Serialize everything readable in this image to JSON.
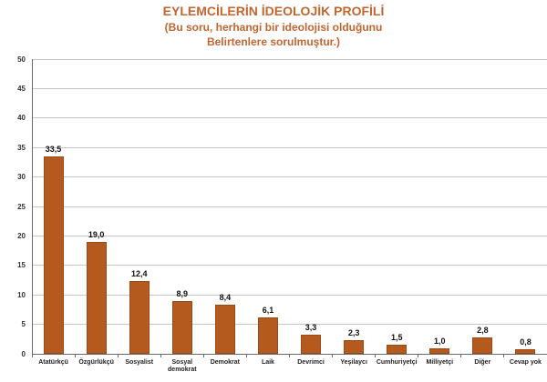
{
  "chart": {
    "title": "EYLEMCİLERİN İDEOLOJİK PROFİLİ",
    "subtitle_line1": "(Bu soru, herhangi bir ideolojisi olduğunu",
    "subtitle_line2": "Belirtenlere sorulmuştur.)",
    "title_color": "#c2662f"
  },
  "chart_data": {
    "type": "bar",
    "title": "EYLEMCİLERİN İDEOLOJİK PROFİLİ",
    "subtitle": "(Bu soru, herhangi bir ideolojisi olduğunu Belirtenlere sorulmuştur.)",
    "categories": [
      "Atatürkçü",
      "Özgürlükçü",
      "Sosyalist",
      "Sosyal demokrat",
      "Demokrat",
      "Laik",
      "Devrimci",
      "Yeşilaycı",
      "Cumhuriyetçi",
      "Milliyetçi",
      "Diğer",
      "Cevap yok"
    ],
    "values": [
      33.5,
      19.0,
      12.4,
      8.9,
      8.4,
      6.1,
      3.3,
      2.3,
      1.5,
      1.0,
      2.8,
      0.8
    ],
    "value_labels": [
      "33,5",
      "19,0",
      "12,4",
      "8,9",
      "8,4",
      "6,1",
      "3,3",
      "2,3",
      "1,5",
      "1,0",
      "2,8",
      "0,8"
    ],
    "xlabel": "",
    "ylabel": "",
    "ylim": [
      0,
      50
    ],
    "ytick_step": 5,
    "ytick_labels": [
      "0",
      "5",
      "10",
      "15",
      "20",
      "25",
      "30",
      "35",
      "40",
      "45",
      "50"
    ],
    "grid": true,
    "legend": "none",
    "bar_color": "#b55a1e",
    "bar_border_color": "#9a4b15",
    "gridline_color": "#c6c6c6",
    "axis_color": "#6a6a6a"
  }
}
